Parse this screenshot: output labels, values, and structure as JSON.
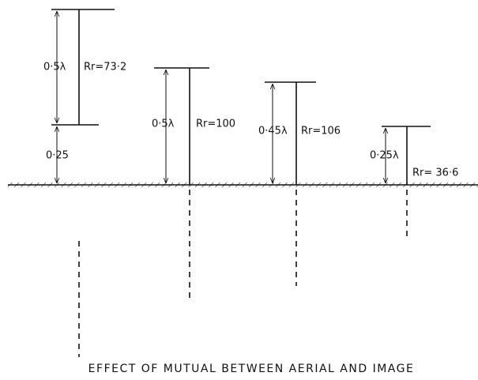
{
  "aerials": [
    {
      "height_label": "0·5λ",
      "resistance": "Rr=73·2",
      "base_label": "0·25"
    },
    {
      "height_label": "0·5λ",
      "resistance": "Rr=100"
    },
    {
      "height_label": "0·45λ",
      "resistance": "Rr=106"
    },
    {
      "height_label": "0·25λ",
      "resistance": "Rr= 36·6"
    }
  ],
  "caption": "EFFECT OF MUTUAL BETWEEN AERIAL AND IMAGE"
}
